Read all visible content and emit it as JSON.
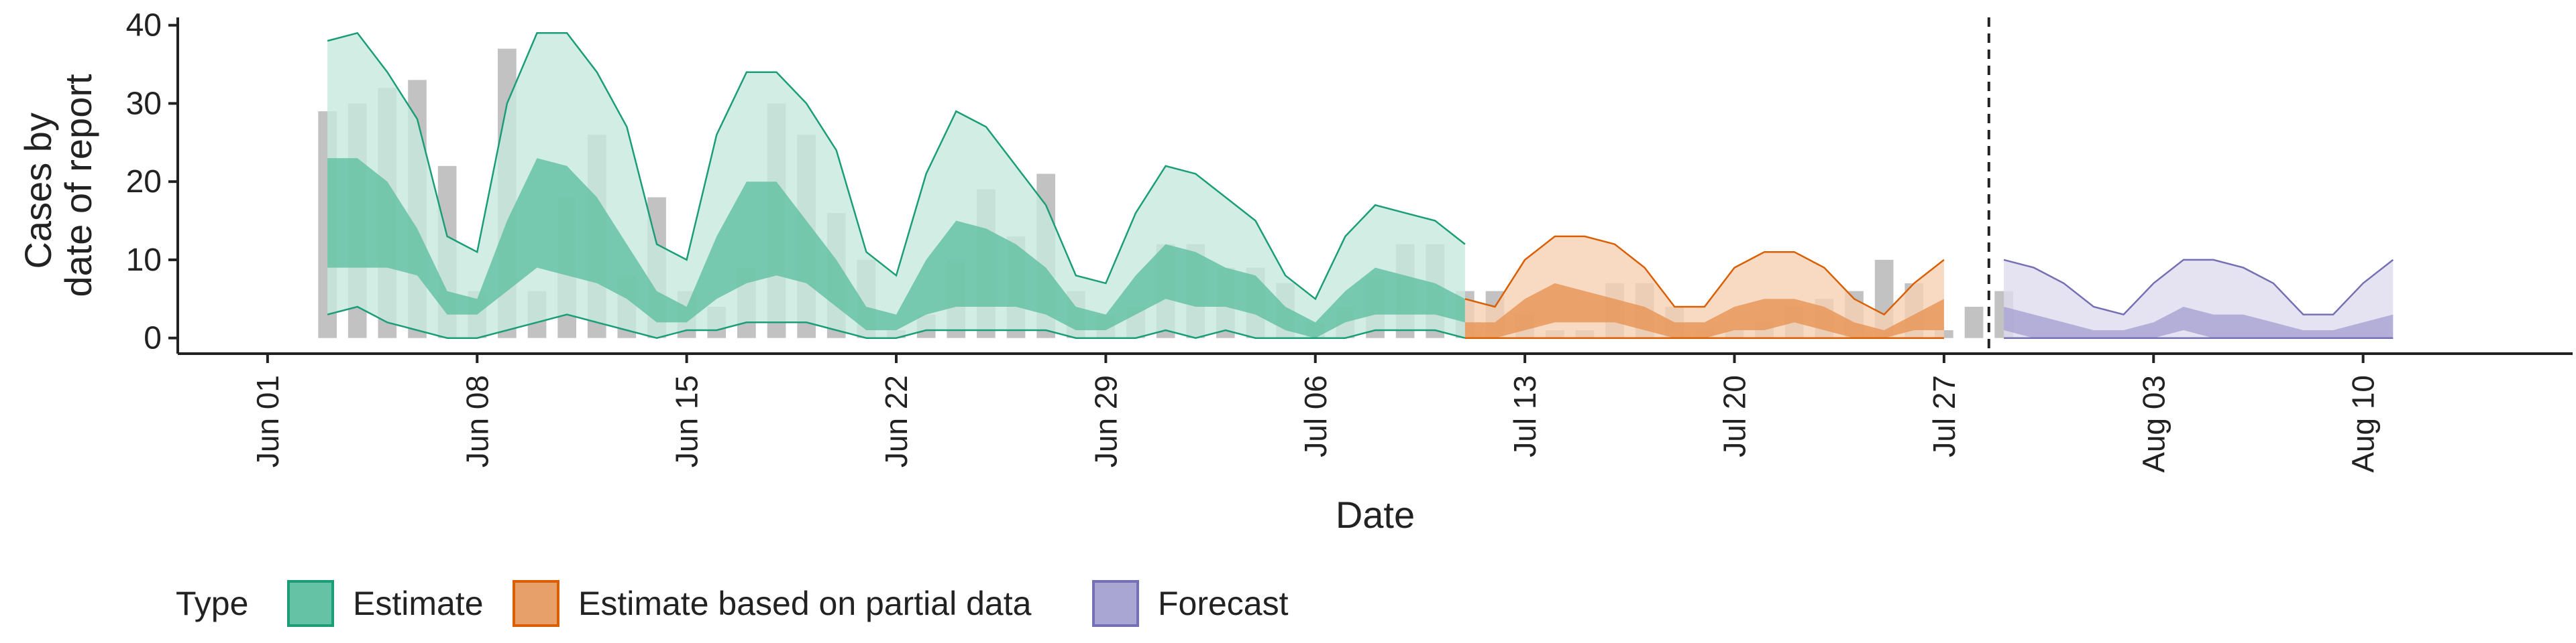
{
  "chart_data": {
    "type": "area",
    "xlabel": "Date",
    "ylabel_lines": [
      "Cases by",
      "date of report"
    ],
    "ylim": [
      -2,
      41
    ],
    "xlim": [
      "2020-05-29",
      "2020-08-17"
    ],
    "y_ticks": [
      0,
      10,
      20,
      30,
      40
    ],
    "x_ticks": [
      {
        "date": "2020-06-01",
        "label": "Jun 01"
      },
      {
        "date": "2020-06-08",
        "label": "Jun 08"
      },
      {
        "date": "2020-06-15",
        "label": "Jun 15"
      },
      {
        "date": "2020-06-22",
        "label": "Jun 22"
      },
      {
        "date": "2020-06-29",
        "label": "Jun 29"
      },
      {
        "date": "2020-07-06",
        "label": "Jul 06"
      },
      {
        "date": "2020-07-13",
        "label": "Jul 13"
      },
      {
        "date": "2020-07-20",
        "label": "Jul 20"
      },
      {
        "date": "2020-07-27",
        "label": "Jul 27"
      },
      {
        "date": "2020-08-03",
        "label": "Aug 03"
      },
      {
        "date": "2020-08-10",
        "label": "Aug 10"
      }
    ],
    "forecast_date": "2020-07-29",
    "grid": false,
    "legend": {
      "title": "Type",
      "position": "bottom",
      "entries": [
        {
          "label": "Estimate",
          "fill": "#66c2a5",
          "stroke": "#1b9e77"
        },
        {
          "label": "Estimate based on partial data",
          "fill": "#e8a06a",
          "stroke": "#d95f02"
        },
        {
          "label": "Forecast",
          "fill": "#aaa6d4",
          "stroke": "#7570b3"
        }
      ]
    },
    "colors": {
      "bars": "#bdbdbd",
      "estimate_outer": "#c6e9dd",
      "estimate_inner": "#66c2a5",
      "estimate_line": "#1b9e77",
      "partial_outer": "#f6d0b2",
      "partial_inner": "#e8965a",
      "partial_line": "#d95f02",
      "forecast_outer": "#dedcef",
      "forecast_inner": "#aaa6d4",
      "forecast_line": "#7570b3",
      "vline": "#222222"
    },
    "observed": {
      "start": "2020-06-03",
      "values": [
        29,
        30,
        32,
        33,
        22,
        6,
        37,
        6,
        18,
        26,
        8,
        18,
        6,
        4,
        9,
        30,
        26,
        16,
        10,
        1,
        3,
        10,
        19,
        13,
        21,
        6,
        3,
        4,
        12,
        12,
        9,
        9,
        7,
        2,
        4,
        8,
        12,
        12,
        6,
        6,
        3,
        1,
        1,
        7,
        7,
        4,
        1,
        1,
        2,
        4,
        5,
        6,
        10,
        7,
        1,
        4,
        6
      ]
    },
    "series": [
      {
        "name": "Estimate",
        "start": "2020-06-03",
        "upper90": [
          38,
          39,
          34,
          28,
          13,
          11,
          30,
          39,
          39,
          34,
          27,
          12,
          10,
          26,
          34,
          34,
          30,
          24,
          11,
          8,
          21,
          29,
          27,
          22,
          17,
          8,
          7,
          16,
          22,
          21,
          18,
          15,
          8,
          5,
          13,
          17,
          16,
          15,
          12
        ],
        "upper50": [
          23,
          23,
          20,
          14,
          6,
          5,
          15,
          23,
          22,
          18,
          12,
          6,
          4,
          13,
          20,
          20,
          15,
          10,
          4,
          3,
          10,
          15,
          14,
          12,
          9,
          4,
          3,
          8,
          12,
          11,
          9,
          8,
          4,
          2,
          6,
          9,
          8,
          7,
          5
        ],
        "lower50": [
          9,
          9,
          9,
          8,
          3,
          3,
          6,
          9,
          8,
          7,
          5,
          2,
          2,
          5,
          7,
          8,
          7,
          4,
          1,
          1,
          3,
          4,
          4,
          4,
          3,
          1,
          1,
          3,
          5,
          4,
          4,
          3,
          1,
          0,
          2,
          3,
          3,
          3,
          2
        ],
        "lower90": [
          3,
          4,
          2,
          1,
          0,
          0,
          1,
          2,
          3,
          2,
          1,
          0,
          1,
          1,
          2,
          2,
          2,
          1,
          0,
          0,
          1,
          1,
          1,
          1,
          1,
          0,
          0,
          0,
          1,
          0,
          1,
          0,
          0,
          0,
          0,
          1,
          1,
          1,
          0
        ]
      },
      {
        "name": "Estimate based on partial data",
        "start": "2020-07-11",
        "upper90": [
          5,
          4,
          10,
          13,
          13,
          12,
          9,
          4,
          4,
          9,
          11,
          11,
          9,
          5,
          3,
          7,
          10
        ],
        "upper50": [
          2,
          2,
          5,
          7,
          6,
          5,
          4,
          2,
          2,
          4,
          5,
          5,
          4,
          2,
          1,
          3,
          5
        ],
        "lower50": [
          0,
          0,
          1,
          2,
          2,
          2,
          1,
          0,
          0,
          1,
          1,
          2,
          1,
          0,
          0,
          1,
          1
        ],
        "lower90": [
          0,
          0,
          0,
          0,
          0,
          0,
          0,
          0,
          0,
          0,
          0,
          0,
          0,
          0,
          0,
          0,
          0
        ]
      },
      {
        "name": "Forecast",
        "start": "2020-07-29",
        "upper90": [
          10,
          9,
          7,
          4,
          3,
          7,
          10,
          10,
          9,
          7,
          3,
          3,
          7,
          10
        ],
        "upper50": [
          4,
          3,
          2,
          1,
          1,
          2,
          4,
          3,
          3,
          2,
          1,
          1,
          2,
          3
        ],
        "lower50": [
          1,
          0,
          0,
          0,
          0,
          0,
          1,
          0,
          0,
          0,
          0,
          0,
          0,
          0
        ],
        "lower90": [
          0,
          0,
          0,
          0,
          0,
          0,
          0,
          0,
          0,
          0,
          0,
          0,
          0,
          0
        ]
      }
    ]
  }
}
